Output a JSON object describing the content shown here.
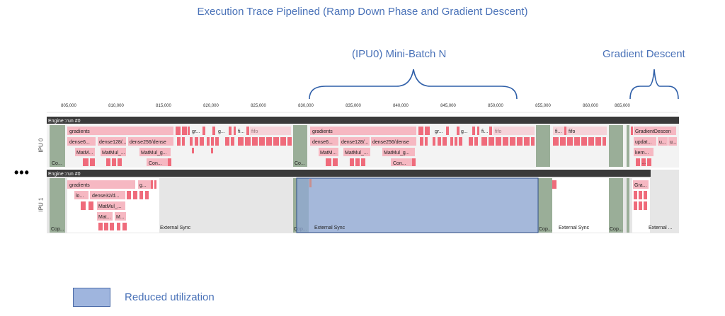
{
  "title": "Execution Trace Pipelined (Ramp Down Phase and Gradient Descent)",
  "annotations": {
    "minibatch": "(IPU0) Mini-Batch N",
    "gradient_descent": "Gradient Descent"
  },
  "left_ellipsis": "•••",
  "axis_ticks": [
    "805,000",
    "810,000",
    "815,000",
    "820,000",
    "825,000",
    "830,000",
    "835,000",
    "840,000",
    "845,000",
    "850,000",
    "855,000",
    "860,000",
    "865,000"
  ],
  "ipu0": {
    "label": "IPU 0",
    "header": "Engine::run #0",
    "labels": {
      "gradients_a": "gradients",
      "dense6_a": "dense6...",
      "dense128_a": "dense128/...",
      "dense256_a": "dense256/dense",
      "matmul_a1": "MatM...",
      "matmul_a2": "MatMul_...",
      "matmul_a3": "MatMul_g...",
      "con_a": "Con...",
      "co_a": "Co...",
      "gr_a": "gr...",
      "g_a": "g...",
      "fi_a": "fi...",
      "fifo_a": "fifo",
      "gradients_b": "gradients",
      "dense6_b": "dense6...",
      "dense128_b": "dense128/...",
      "dense256_b": "dense256/dense",
      "matmul_b1": "MatM...",
      "matmul_b2": "MatMul_...",
      "matmul_b3": "MatMul_g...",
      "con_b": "Con...",
      "co_b": "Co...",
      "gr_b": "gr...",
      "g_b": "g...",
      "fi_b": "fi...",
      "fifo_b": "fifo",
      "fi_c": "fi...",
      "fifo_c": "fifo",
      "graddesc": "GradientDescen",
      "updat": "updat...",
      "u1": "u...",
      "u2": "u...",
      "kern": "kern...",
      "ell": "..."
    }
  },
  "ipu1": {
    "label": "IPU 1",
    "header": "Engine::run #0",
    "labels": {
      "gradients": "gradients",
      "g": "g...",
      "lo": "lo...",
      "dense32": "dense32/d...",
      "matmul": "MatMul_...",
      "mat": "Mat...",
      "m": "M...",
      "cop_a": "Cop...",
      "cop_b": "Cop...",
      "cop_c": "Cop...",
      "cop_d": "Cop...",
      "ext_a": "External Sync",
      "ext_b": "External Sync",
      "ext_c": "External Sync",
      "ext_d": "External ...",
      "gra": "Gra..."
    }
  },
  "legend": {
    "label": "Reduced utilization",
    "color": "#9fb5de"
  },
  "colors": {
    "pink": "#f6b8c2",
    "red": "#ef6b7b",
    "gray_sage": "#9aae98",
    "sync_gray": "#e6e6e6",
    "header": "#3a3a3a",
    "reduced": "#9fb5de",
    "accent_text": "#4a72b8"
  }
}
